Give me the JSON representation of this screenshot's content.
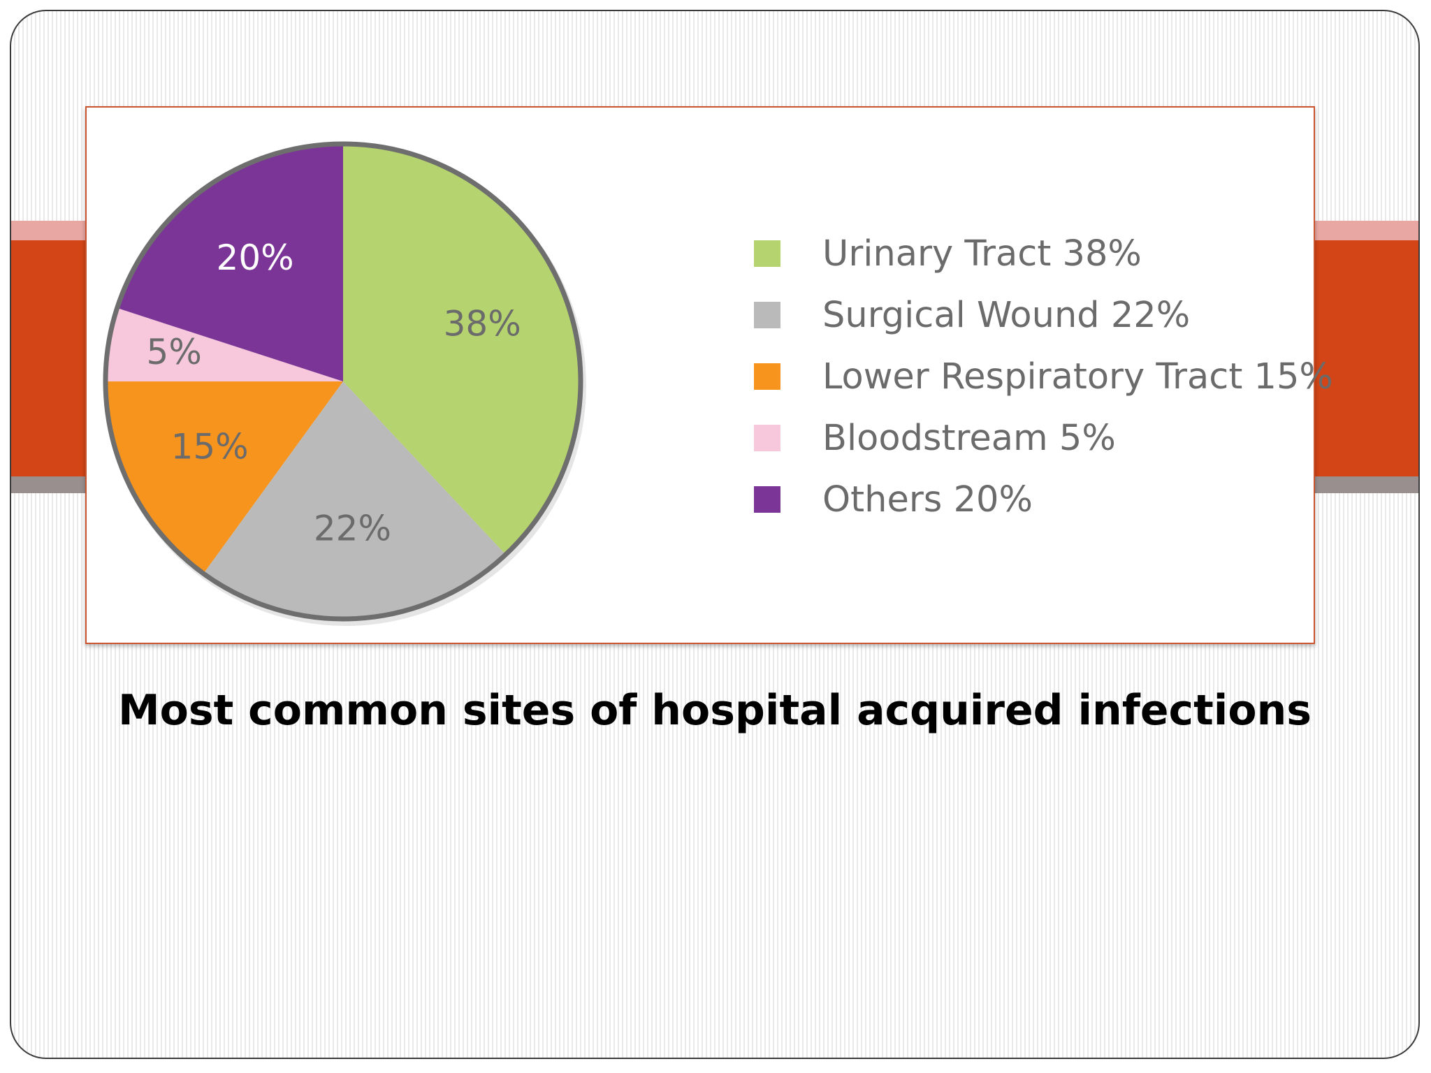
{
  "slide": {
    "caption": "Most common sites of hospital acquired infections",
    "band_colors": {
      "top": "#e8a7a2",
      "main": "#d34516",
      "bottom": "#998f8f"
    }
  },
  "chart_data": {
    "type": "pie",
    "title": "",
    "categories": [
      "Urinary Tract",
      "Surgical Wound",
      "Lower Respiratory Tract",
      "Bloodstream",
      "Others"
    ],
    "values": [
      38,
      22,
      15,
      5,
      20
    ],
    "slice_labels": [
      "38%",
      "22%",
      "15%",
      "5%",
      "20%"
    ],
    "colors": [
      "#b5d36f",
      "#bababa",
      "#f7941e",
      "#f7c8dc",
      "#7b3597"
    ],
    "label_colors": [
      "#6b6b6b",
      "#6b6b6b",
      "#6b6b6b",
      "#6b6b6b",
      "#ffffff"
    ],
    "start": "12 o'clock",
    "direction": "clockwise",
    "legend_position": "right",
    "legend": [
      {
        "label": "Urinary Tract 38%",
        "color": "#b5d36f"
      },
      {
        "label": "Surgical Wound 22%",
        "color": "#bababa"
      },
      {
        "label": "Lower Respiratory Tract 15%",
        "color": "#f7941e"
      },
      {
        "label": "Bloodstream 5%",
        "color": "#f7c8dc"
      },
      {
        "label": "Others 20%",
        "color": "#7b3597"
      }
    ]
  }
}
